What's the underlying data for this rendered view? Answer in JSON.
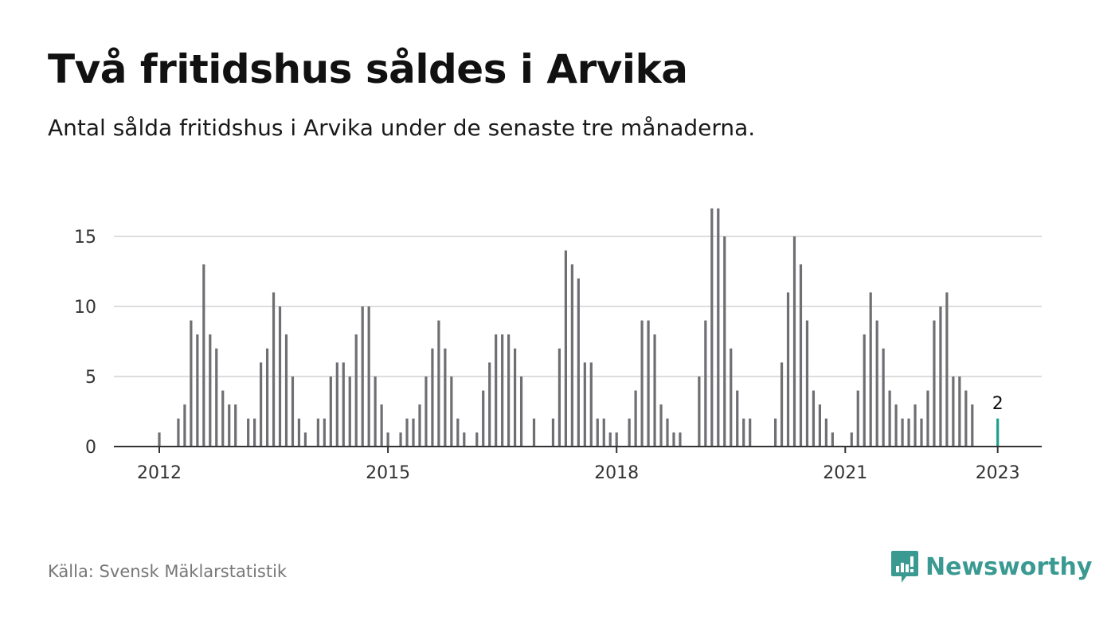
{
  "header": {
    "title": "Två fritidshus såldes i Arvika",
    "subtitle": "Antal sålda fritidshus i Arvika under de senaste tre månaderna."
  },
  "footer": {
    "source": "Källa: Svensk Mäklarstatistik",
    "brand": "Newsworthy"
  },
  "colors": {
    "bar": "#6e6e73",
    "highlight": "#1f9e8f",
    "grid": "#dddddd",
    "axis": "#333333",
    "brand": "#3a9a92"
  },
  "chart_data": {
    "type": "bar",
    "x_start": "2012-01",
    "x_end": "2023-01",
    "x_ticks": [
      "2012",
      "2015",
      "2018",
      "2021",
      "2023"
    ],
    "y_ticks": [
      0,
      5,
      10,
      15
    ],
    "ylim": [
      0,
      17
    ],
    "grid": true,
    "highlight_label": "2",
    "series": [
      {
        "year": 2012,
        "values": [
          1,
          0,
          0,
          2,
          3,
          9,
          8,
          13,
          8,
          7,
          4,
          3
        ]
      },
      {
        "year": 2013,
        "values": [
          3,
          0,
          2,
          2,
          6,
          7,
          11,
          10,
          8,
          5,
          2,
          1
        ]
      },
      {
        "year": 2014,
        "values": [
          0,
          2,
          2,
          5,
          6,
          6,
          5,
          8,
          10,
          10,
          5,
          3
        ]
      },
      {
        "year": 2015,
        "values": [
          1,
          0,
          1,
          2,
          2,
          3,
          5,
          7,
          9,
          7,
          5,
          2
        ]
      },
      {
        "year": 2016,
        "values": [
          1,
          0,
          1,
          4,
          6,
          8,
          8,
          8,
          7,
          5,
          0,
          2
        ]
      },
      {
        "year": 2017,
        "values": [
          0,
          0,
          2,
          7,
          14,
          13,
          12,
          6,
          6,
          2,
          2,
          1
        ]
      },
      {
        "year": 2018,
        "values": [
          1,
          0,
          2,
          4,
          9,
          9,
          8,
          3,
          2,
          1,
          1,
          0
        ]
      },
      {
        "year": 2019,
        "values": [
          0,
          5,
          9,
          17,
          17,
          15,
          7,
          4,
          2,
          2,
          0,
          0
        ]
      },
      {
        "year": 2020,
        "values": [
          0,
          2,
          6,
          11,
          15,
          13,
          9,
          4,
          3,
          2,
          1,
          0
        ]
      },
      {
        "year": 2021,
        "values": [
          0,
          1,
          4,
          8,
          11,
          9,
          7,
          4,
          3,
          2,
          2,
          3
        ]
      },
      {
        "year": 2022,
        "values": [
          2,
          4,
          9,
          10,
          11,
          5,
          5,
          4,
          3,
          0,
          0,
          0
        ]
      },
      {
        "year": 2023,
        "values": [
          2
        ]
      }
    ]
  }
}
